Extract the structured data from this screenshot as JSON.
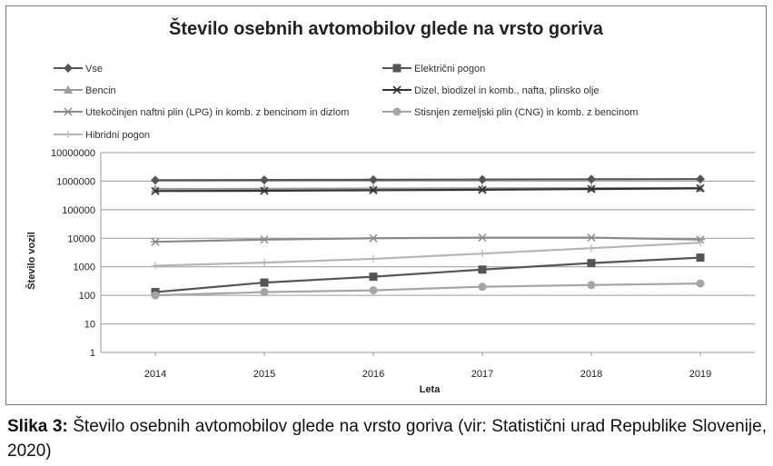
{
  "chart_data": {
    "type": "line",
    "title": "Število osebnih avtomobilov glede na vrsto goriva",
    "xlabel": "Leta",
    "ylabel": "Število vozil",
    "y_scale": "log",
    "ylim": [
      1,
      10000000
    ],
    "y_ticks": [
      "10000000",
      "1000000",
      "100000",
      "10000",
      "1000",
      "100",
      "10",
      "1"
    ],
    "y_tick_values": [
      10000000,
      1000000,
      100000,
      10000,
      1000,
      100,
      10,
      1
    ],
    "categories": [
      "2014",
      "2015",
      "2016",
      "2017",
      "2018",
      "2019"
    ],
    "grid": "horizontal",
    "legend_position": "top",
    "series": [
      {
        "name": "Vse",
        "marker": "diamond",
        "color": "#555555",
        "values": [
          1080000,
          1100000,
          1120000,
          1140000,
          1160000,
          1180000
        ]
      },
      {
        "name": "Električni pogon",
        "marker": "square",
        "color": "#555555",
        "values": [
          130,
          280,
          450,
          800,
          1350,
          2100
        ]
      },
      {
        "name": "Bencin",
        "marker": "triangle",
        "color": "#9a9a9a",
        "values": [
          530000,
          540000,
          550000,
          560000,
          570000,
          575000
        ]
      },
      {
        "name": "Dizel, biodizel in komb., nafta, plinsko olje",
        "marker": "x",
        "color": "#333333",
        "values": [
          450000,
          460000,
          480000,
          500000,
          530000,
          560000
        ]
      },
      {
        "name": "Utekočinjen naftni plin (LPG) in komb. z bencinom in dizlom",
        "marker": "star",
        "color": "#8a8a8a",
        "values": [
          7500,
          9000,
          10000,
          10500,
          10500,
          9000
        ]
      },
      {
        "name": "Stisnjen zemeljski plin (CNG) in komb. z bencinom",
        "marker": "circle",
        "color": "#a5a5a5",
        "values": [
          100,
          130,
          150,
          200,
          230,
          260
        ]
      },
      {
        "name": "Hibridni pogon",
        "marker": "plus",
        "color": "#b5b5b5",
        "values": [
          1100,
          1400,
          1900,
          2900,
          4500,
          7000
        ]
      }
    ]
  },
  "caption": {
    "label": "Slika 3:",
    "text": " Število osebnih avtomobilov glede na vrsto goriva (vir: Statistični urad Republike Slovenije, 2020)"
  }
}
